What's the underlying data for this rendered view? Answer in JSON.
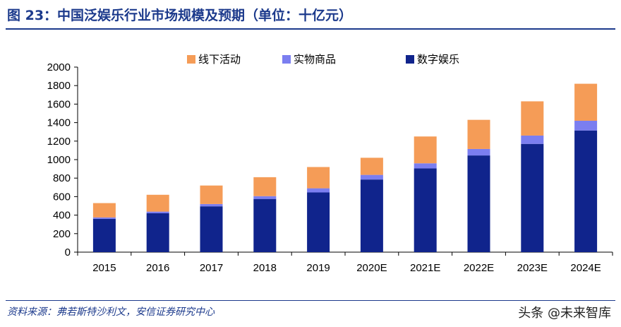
{
  "header": {
    "title": "图 23：中国泛娱乐行业市场规模及预期（单位：十亿元）"
  },
  "footer": {
    "source": "资料来源：弗若斯特沙利文，安信证券研究中心",
    "watermark": "头条 @未来智库"
  },
  "colors": {
    "digital": "#10248c",
    "physical": "#7b7ef0",
    "offline": "#f59c57",
    "accent": "#1c3a8c"
  },
  "chart_data": {
    "type": "bar",
    "stacked": true,
    "title": "中国泛娱乐行业市场规模及预期（单位：十亿元）",
    "categories": [
      "2015",
      "2016",
      "2017",
      "2018",
      "2019",
      "2020E",
      "2021E",
      "2022E",
      "2023E",
      "2024E"
    ],
    "series": [
      {
        "name": "数字娱乐",
        "values": [
          360,
          420,
          495,
          575,
          645,
          785,
          905,
          1045,
          1170,
          1315
        ]
      },
      {
        "name": "实物商品",
        "values": [
          15,
          18,
          25,
          30,
          45,
          50,
          55,
          70,
          90,
          105
        ]
      },
      {
        "name": "线下活动",
        "values": [
          155,
          182,
          200,
          205,
          230,
          185,
          290,
          315,
          370,
          400
        ]
      }
    ],
    "legend_order": [
      "线下活动",
      "实物商品",
      "数字娱乐"
    ],
    "legend_position": "top",
    "ylim": [
      0,
      2000
    ],
    "yticks": [
      0,
      200,
      400,
      600,
      800,
      1000,
      1200,
      1400,
      1600,
      1800,
      2000
    ],
    "xlabel": "",
    "ylabel": "",
    "grid": false
  }
}
